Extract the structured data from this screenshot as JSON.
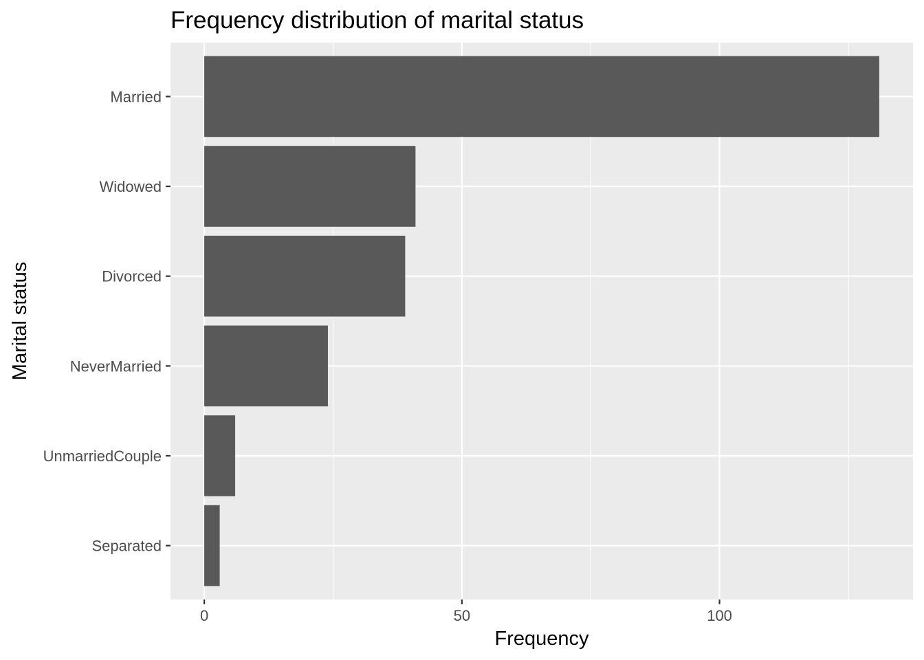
{
  "chart_data": {
    "type": "bar",
    "orientation": "horizontal",
    "title": "Frequency distribution of marital status",
    "xlabel": "Frequency",
    "ylabel": "Marital status",
    "categories": [
      "Married",
      "Widowed",
      "Divorced",
      "NeverMarried",
      "UnmarriedCouple",
      "Separated"
    ],
    "values": [
      131,
      41,
      39,
      24,
      6,
      3
    ],
    "xlim": [
      -6.55,
      137.55
    ],
    "xticks": [
      0,
      50,
      100
    ],
    "xtick_labels": [
      "0",
      "50",
      "100"
    ],
    "grid": true,
    "legend": "none",
    "colors": {
      "bar": "#595959",
      "panel": "#ebebeb",
      "grid": "#ffffff",
      "tick_text": "#4d4d4d",
      "tick_mark": "#333333"
    }
  }
}
